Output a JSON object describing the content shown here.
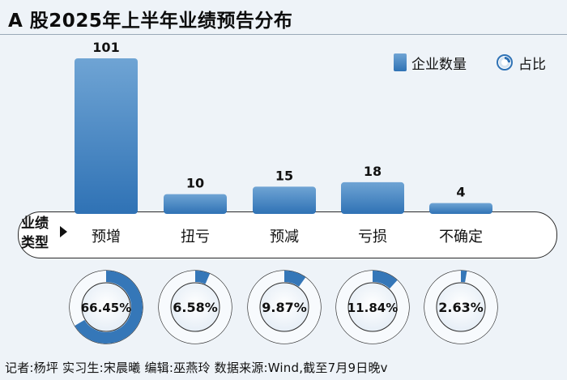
{
  "title": "A 股2025年上半年业绩预告分布",
  "legend": {
    "bar_label": "企业数量",
    "ring_label": "占比"
  },
  "band_label": "业绩类型",
  "colors": {
    "bar_top": "#6fa4d4",
    "bar_bottom": "#2f72b5",
    "ring_fill": "#3577b8",
    "ring_track": "#ffffff",
    "background": "#eef3f8"
  },
  "chart_data": {
    "type": "bar",
    "categories": [
      "预增",
      "扭亏",
      "预减",
      "亏损",
      "不确定"
    ],
    "series": [
      {
        "values": [
          101,
          10,
          15,
          18,
          4
        ]
      }
    ],
    "ratios": [
      {
        "category": "预增",
        "value": 66.45,
        "label": "66.45%"
      },
      {
        "category": "扭亏",
        "value": 6.58,
        "label": "6.58%"
      },
      {
        "category": "预减",
        "value": 9.87,
        "label": "9.87%"
      },
      {
        "category": "亏损",
        "value": 11.84,
        "label": "11.84%"
      },
      {
        "category": "不确定",
        "value": 2.63,
        "label": "2.63%"
      }
    ],
    "bar_labels": [
      "101",
      "10",
      "15",
      "18",
      "4"
    ],
    "ylim": [
      0,
      101
    ],
    "grid": false,
    "legend_position": "top-right"
  },
  "footer": "记者:杨坪  实习生:宋晨曦  编辑:巫燕玲  数据来源:Wind,截至7月9日晚v"
}
